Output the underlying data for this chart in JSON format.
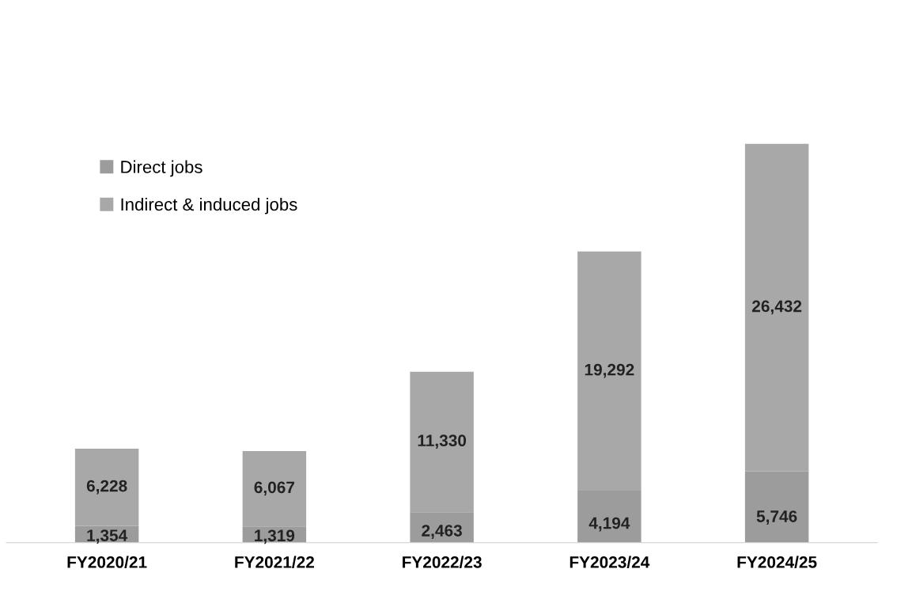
{
  "chart_data": {
    "type": "bar",
    "stacked": true,
    "categories": [
      "FY2020/21",
      "FY2021/22",
      "FY2022/23",
      "FY2023/24",
      "FY2024/25"
    ],
    "series": [
      {
        "name": "Direct jobs",
        "color": "#9c9c9c",
        "values": [
          1354,
          1319,
          2463,
          4194,
          5746
        ],
        "value_labels": [
          "1,354",
          "1,319",
          "2,463",
          "4,194",
          "5,746"
        ]
      },
      {
        "name": "Indirect & induced jobs",
        "color": "#a8a8a8",
        "values": [
          6228,
          6067,
          11330,
          19292,
          26432
        ],
        "value_labels": [
          "6,228",
          "6,067",
          "11,330",
          "19,292",
          "26,432"
        ]
      }
    ],
    "legend": "top left",
    "grid": false,
    "tick_labels": "x"
  }
}
